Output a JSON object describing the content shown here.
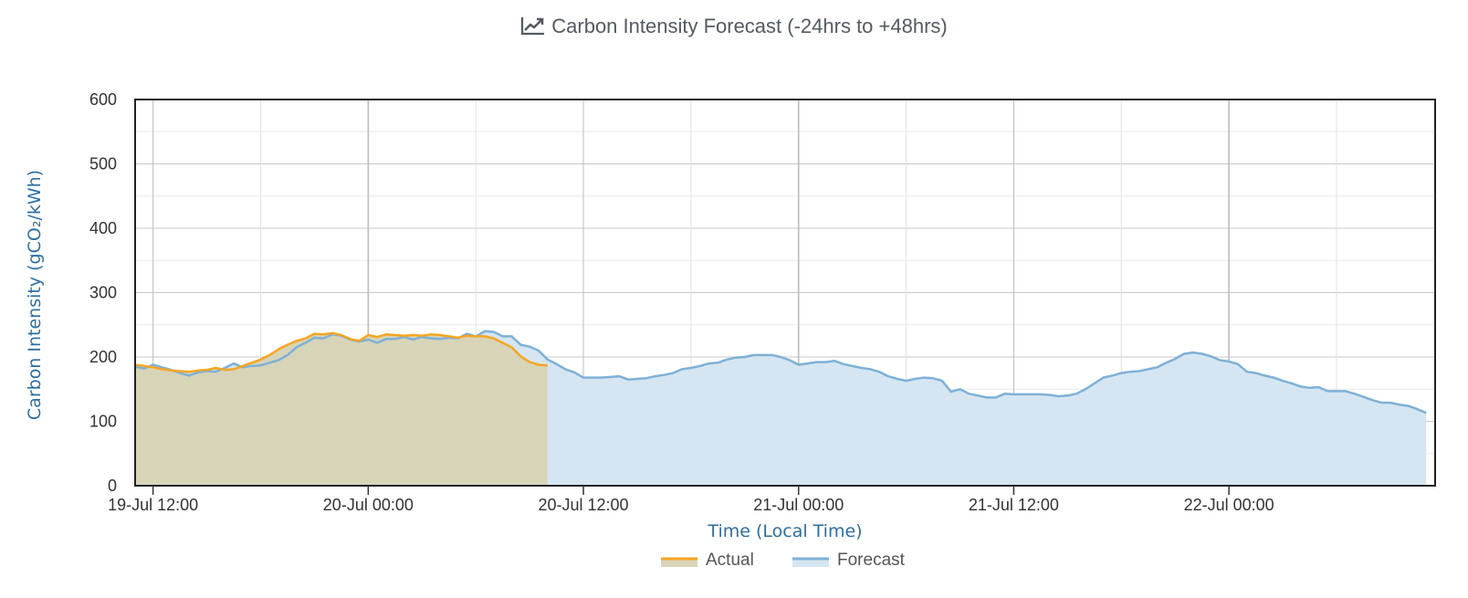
{
  "chart_data": {
    "type": "area",
    "title": "Carbon Intensity Forecast (-24hrs to +48hrs)",
    "title_icon": "line-chart-icon",
    "xlabel": "Time (Local Time)",
    "ylabel": "Carbon Intensity (gCO₂/kWh)",
    "ylim": [
      0,
      600
    ],
    "yticks": [
      0,
      100,
      200,
      300,
      400,
      500,
      600
    ],
    "xlim_hours": [
      0,
      72
    ],
    "xticks": [
      {
        "h": 0,
        "label": "19-Jul 12:00"
      },
      {
        "h": 12,
        "label": "20-Jul 00:00"
      },
      {
        "h": 24,
        "label": "20-Jul 12:00"
      },
      {
        "h": 36,
        "label": "21-Jul 00:00"
      },
      {
        "h": 48,
        "label": "21-Jul 12:00"
      },
      {
        "h": 60,
        "label": "22-Jul 00:00"
      }
    ],
    "x_axis_start": "19-Jul 11:00",
    "grid": true,
    "legend_position": "bottom-center",
    "series": [
      {
        "name": "Actual",
        "color": "#f5a623",
        "fill": "#d8d4b8",
        "points": [
          [
            -1,
            188
          ],
          [
            -0.5,
            186
          ],
          [
            0,
            184
          ],
          [
            0.5,
            181
          ],
          [
            1,
            179
          ],
          [
            1.5,
            178
          ],
          [
            2,
            177
          ],
          [
            2.5,
            179
          ],
          [
            3,
            180
          ],
          [
            3.5,
            183
          ],
          [
            4,
            180
          ],
          [
            4.5,
            181
          ],
          [
            5,
            186
          ],
          [
            5.5,
            191
          ],
          [
            6,
            196
          ],
          [
            6.5,
            203
          ],
          [
            7,
            212
          ],
          [
            7.5,
            219
          ],
          [
            8,
            225
          ],
          [
            8.5,
            229
          ],
          [
            9,
            236
          ],
          [
            9.5,
            235
          ],
          [
            10,
            237
          ],
          [
            10.5,
            234
          ],
          [
            11,
            228
          ],
          [
            11.5,
            225
          ],
          [
            12,
            234
          ],
          [
            12.5,
            231
          ],
          [
            13,
            235
          ],
          [
            13.5,
            234
          ],
          [
            14,
            233
          ],
          [
            14.5,
            234
          ],
          [
            15,
            233
          ],
          [
            15.5,
            235
          ],
          [
            16,
            234
          ],
          [
            16.5,
            232
          ],
          [
            17,
            230
          ],
          [
            17.5,
            233
          ],
          [
            18,
            232
          ],
          [
            18.5,
            232
          ],
          [
            19,
            229
          ],
          [
            19.5,
            222
          ],
          [
            20,
            215
          ],
          [
            20.5,
            201
          ],
          [
            21,
            192
          ],
          [
            21.5,
            188
          ],
          [
            22,
            187
          ]
        ]
      },
      {
        "name": "Forecast",
        "color": "#7fb0d6",
        "fill": "#d5e6f2",
        "points": [
          [
            -1,
            185
          ],
          [
            -0.5,
            182
          ],
          [
            0,
            188
          ],
          [
            0.5,
            184
          ],
          [
            1,
            180
          ],
          [
            1.5,
            175
          ],
          [
            2,
            171
          ],
          [
            2.5,
            176
          ],
          [
            3,
            178
          ],
          [
            3.5,
            177
          ],
          [
            4,
            183
          ],
          [
            4.5,
            190
          ],
          [
            5,
            184
          ],
          [
            5.5,
            186
          ],
          [
            6,
            187
          ],
          [
            6.5,
            191
          ],
          [
            7,
            195
          ],
          [
            7.5,
            203
          ],
          [
            8,
            215
          ],
          [
            8.5,
            222
          ],
          [
            9,
            230
          ],
          [
            9.5,
            229
          ],
          [
            10,
            235
          ],
          [
            10.5,
            233
          ],
          [
            11,
            227
          ],
          [
            11.5,
            224
          ],
          [
            12,
            227
          ],
          [
            12.5,
            222
          ],
          [
            13,
            228
          ],
          [
            13.5,
            228
          ],
          [
            14,
            231
          ],
          [
            14.5,
            227
          ],
          [
            15,
            231
          ],
          [
            15.5,
            229
          ],
          [
            16,
            228
          ],
          [
            16.5,
            230
          ],
          [
            17,
            229
          ],
          [
            17.5,
            236
          ],
          [
            18,
            232
          ],
          [
            18.5,
            240
          ],
          [
            19,
            239
          ],
          [
            19.5,
            232
          ],
          [
            20,
            232
          ],
          [
            20.5,
            219
          ],
          [
            21,
            216
          ],
          [
            21.5,
            210
          ],
          [
            22,
            196
          ],
          [
            22.5,
            189
          ],
          [
            23,
            181
          ],
          [
            23.5,
            176
          ],
          [
            24,
            168
          ],
          [
            24.5,
            168
          ],
          [
            25,
            168
          ],
          [
            25.5,
            169
          ],
          [
            26,
            170
          ],
          [
            26.5,
            165
          ],
          [
            27,
            166
          ],
          [
            27.5,
            167
          ],
          [
            28,
            170
          ],
          [
            28.5,
            172
          ],
          [
            29,
            175
          ],
          [
            29.5,
            181
          ],
          [
            30,
            183
          ],
          [
            30.5,
            186
          ],
          [
            31,
            190
          ],
          [
            31.5,
            191
          ],
          [
            32,
            196
          ],
          [
            32.5,
            199
          ],
          [
            33,
            200
          ],
          [
            33.5,
            203
          ],
          [
            34,
            203
          ],
          [
            34.5,
            203
          ],
          [
            35,
            200
          ],
          [
            35.5,
            195
          ],
          [
            36,
            188
          ],
          [
            36.5,
            190
          ],
          [
            37,
            192
          ],
          [
            37.5,
            192
          ],
          [
            38,
            194
          ],
          [
            38.5,
            189
          ],
          [
            39,
            186
          ],
          [
            39.5,
            183
          ],
          [
            40,
            181
          ],
          [
            40.5,
            177
          ],
          [
            41,
            170
          ],
          [
            41.5,
            166
          ],
          [
            42,
            163
          ],
          [
            42.5,
            166
          ],
          [
            43,
            168
          ],
          [
            43.5,
            167
          ],
          [
            44,
            163
          ],
          [
            44.5,
            146
          ],
          [
            45,
            150
          ],
          [
            45.5,
            143
          ],
          [
            46,
            140
          ],
          [
            46.5,
            137
          ],
          [
            47,
            137
          ],
          [
            47.5,
            143
          ],
          [
            48,
            142
          ],
          [
            48.5,
            142
          ],
          [
            49,
            142
          ],
          [
            49.5,
            142
          ],
          [
            50,
            141
          ],
          [
            50.5,
            139
          ],
          [
            51,
            140
          ],
          [
            51.5,
            143
          ],
          [
            52,
            150
          ],
          [
            52.5,
            159
          ],
          [
            53,
            168
          ],
          [
            53.5,
            171
          ],
          [
            54,
            175
          ],
          [
            54.5,
            177
          ],
          [
            55,
            178
          ],
          [
            55.5,
            181
          ],
          [
            56,
            184
          ],
          [
            56.5,
            191
          ],
          [
            57,
            197
          ],
          [
            57.5,
            205
          ],
          [
            58,
            207
          ],
          [
            58.5,
            205
          ],
          [
            59,
            201
          ],
          [
            59.5,
            195
          ],
          [
            60,
            193
          ],
          [
            60.5,
            189
          ],
          [
            61,
            177
          ],
          [
            61.5,
            175
          ],
          [
            62,
            171
          ],
          [
            62.5,
            168
          ],
          [
            63,
            163
          ],
          [
            63.5,
            159
          ],
          [
            64,
            154
          ],
          [
            64.5,
            152
          ],
          [
            65,
            153
          ],
          [
            65.5,
            147
          ],
          [
            66,
            147
          ],
          [
            66.5,
            147
          ],
          [
            67,
            143
          ],
          [
            67.5,
            138
          ],
          [
            68,
            133
          ],
          [
            68.5,
            129
          ],
          [
            69,
            129
          ],
          [
            69.5,
            126
          ],
          [
            70,
            124
          ],
          [
            70.5,
            119
          ],
          [
            71,
            113
          ]
        ]
      }
    ]
  }
}
